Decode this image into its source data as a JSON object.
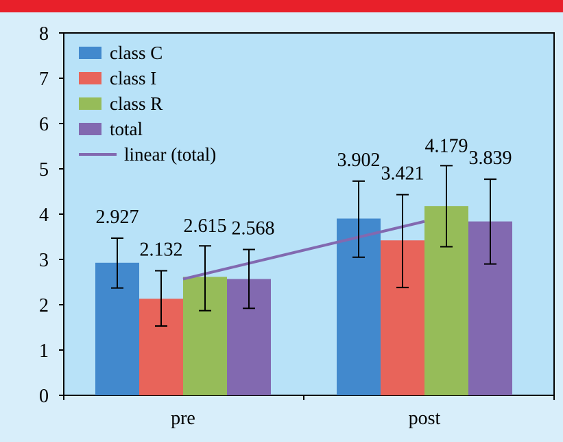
{
  "colors": {
    "top_bar": "#e8202a",
    "page_background": "#d8eefa",
    "plot_background": "#b8e2f8"
  },
  "chart_data": {
    "type": "bar",
    "categories": [
      "pre",
      "post"
    ],
    "ylim": [
      0,
      8
    ],
    "yticks": [
      "0",
      "1",
      "2",
      "3",
      "4",
      "5",
      "6",
      "7",
      "8"
    ],
    "grid": false,
    "legend_position": "top-left",
    "series": [
      {
        "name": "class C",
        "color": "#4289cd",
        "values": [
          2.927,
          3.902
        ],
        "labels": [
          "2.927",
          "3.902"
        ],
        "error_low": [
          2.37,
          3.05
        ],
        "error_high": [
          3.47,
          4.73
        ]
      },
      {
        "name": "class I",
        "color": "#e8645a",
        "values": [
          2.132,
          3.421
        ],
        "labels": [
          "2.132",
          "3.421"
        ],
        "error_low": [
          1.53,
          2.38
        ],
        "error_high": [
          2.75,
          4.43
        ]
      },
      {
        "name": "class R",
        "color": "#96bc59",
        "values": [
          2.615,
          4.179
        ],
        "labels": [
          "2.615",
          "4.179"
        ],
        "error_low": [
          1.87,
          3.28
        ],
        "error_high": [
          3.3,
          5.07
        ]
      },
      {
        "name": "total",
        "color": "#8269b0",
        "values": [
          2.568,
          3.839
        ],
        "labels": [
          "2.568",
          "3.839"
        ],
        "error_low": [
          1.92,
          2.9
        ],
        "error_high": [
          3.22,
          4.77
        ]
      }
    ],
    "trendline": {
      "name": "linear (total)",
      "color": "#8269b0",
      "values": [
        2.568,
        3.839
      ]
    }
  }
}
